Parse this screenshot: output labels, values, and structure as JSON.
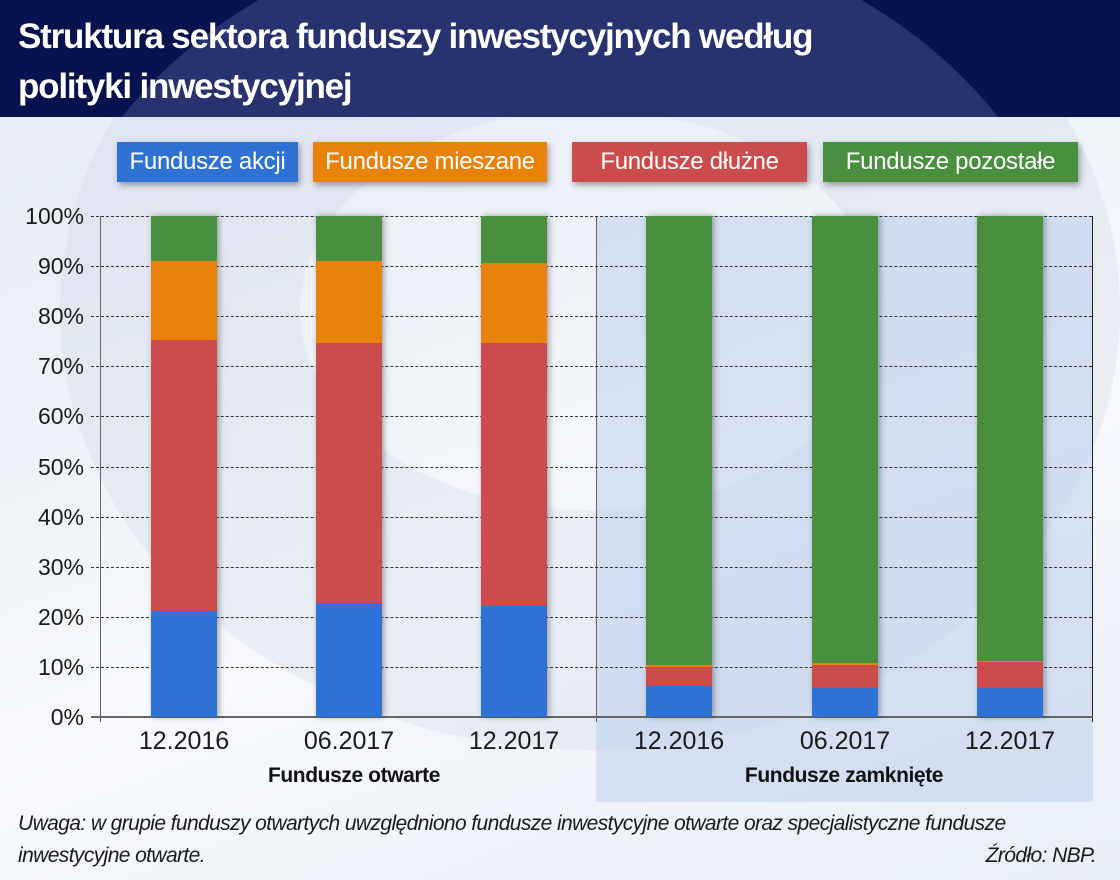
{
  "header": {
    "title_line1": "Struktura sektora funduszy inwestycyjnych według",
    "title_line2": "polityki inwestycyjnej"
  },
  "legend": [
    {
      "label": "Fundusze akcji",
      "color": "#2f72d6"
    },
    {
      "label": "Fundusze mieszane",
      "color": "#e8820a"
    },
    {
      "label": "Fundusze dłużne",
      "color": "#cc4b4c"
    },
    {
      "label": "Fundusze pozostałe",
      "color": "#4a8f3f"
    }
  ],
  "yaxis": {
    "ticks": [
      "100%",
      "90%",
      "80%",
      "70%",
      "60%",
      "50%",
      "40%",
      "30%",
      "20%",
      "10%",
      "0%"
    ]
  },
  "xaxis": {
    "ticks": [
      "12.2016",
      "06.2017",
      "12.2017",
      "12.2016",
      "06.2017",
      "12.2017"
    ],
    "groups": [
      "Fundusze otwarte",
      "Fundusze zamknięte"
    ]
  },
  "footer": {
    "note": "Uwaga: w grupie funduszy otwartych uwzględniono fundusze inwestycyjne otwarte oraz specjalistyczne fundusze inwestycyjne otwarte.",
    "source": "Źródło: NBP."
  },
  "chart_data": {
    "type": "bar",
    "stacked": true,
    "title": "Struktura sektora funduszy inwestycyjnych według polityki inwestycyjnej",
    "xlabel": "",
    "ylabel": "",
    "ylim": [
      0,
      100
    ],
    "y_unit": "%",
    "grid": true,
    "legend_position": "top",
    "groups": [
      {
        "name": "Fundusze otwarte",
        "categories": [
          "12.2016",
          "06.2017",
          "12.2017"
        ]
      },
      {
        "name": "Fundusze zamknięte",
        "categories": [
          "12.2016",
          "06.2017",
          "12.2017"
        ]
      }
    ],
    "categories": [
      "12.2016",
      "06.2017",
      "12.2017",
      "12.2016",
      "06.2017",
      "12.2017"
    ],
    "series": [
      {
        "name": "Fundusze akcji",
        "color": "#2f72d6",
        "values": [
          21.2,
          22.8,
          22.2,
          6.2,
          5.8,
          5.7
        ]
      },
      {
        "name": "Fundusze dłużne",
        "color": "#cc4b4c",
        "values": [
          54.0,
          51.9,
          52.4,
          3.8,
          4.6,
          5.2
        ]
      },
      {
        "name": "Fundusze mieszane",
        "color": "#e8820a",
        "values": [
          15.8,
          16.3,
          16.0,
          0.3,
          0.3,
          0.2
        ]
      },
      {
        "name": "Fundusze pozostałe",
        "color": "#4a8f3f",
        "values": [
          9.0,
          9.0,
          9.4,
          89.7,
          89.3,
          88.9
        ]
      }
    ],
    "footnote": "Uwaga: w grupie funduszy otwartych uwzględniono fundusze inwestycyjne otwarte oraz specjalistyczne fundusze inwestycyjne otwarte.",
    "source": "Źródło: NBP."
  }
}
